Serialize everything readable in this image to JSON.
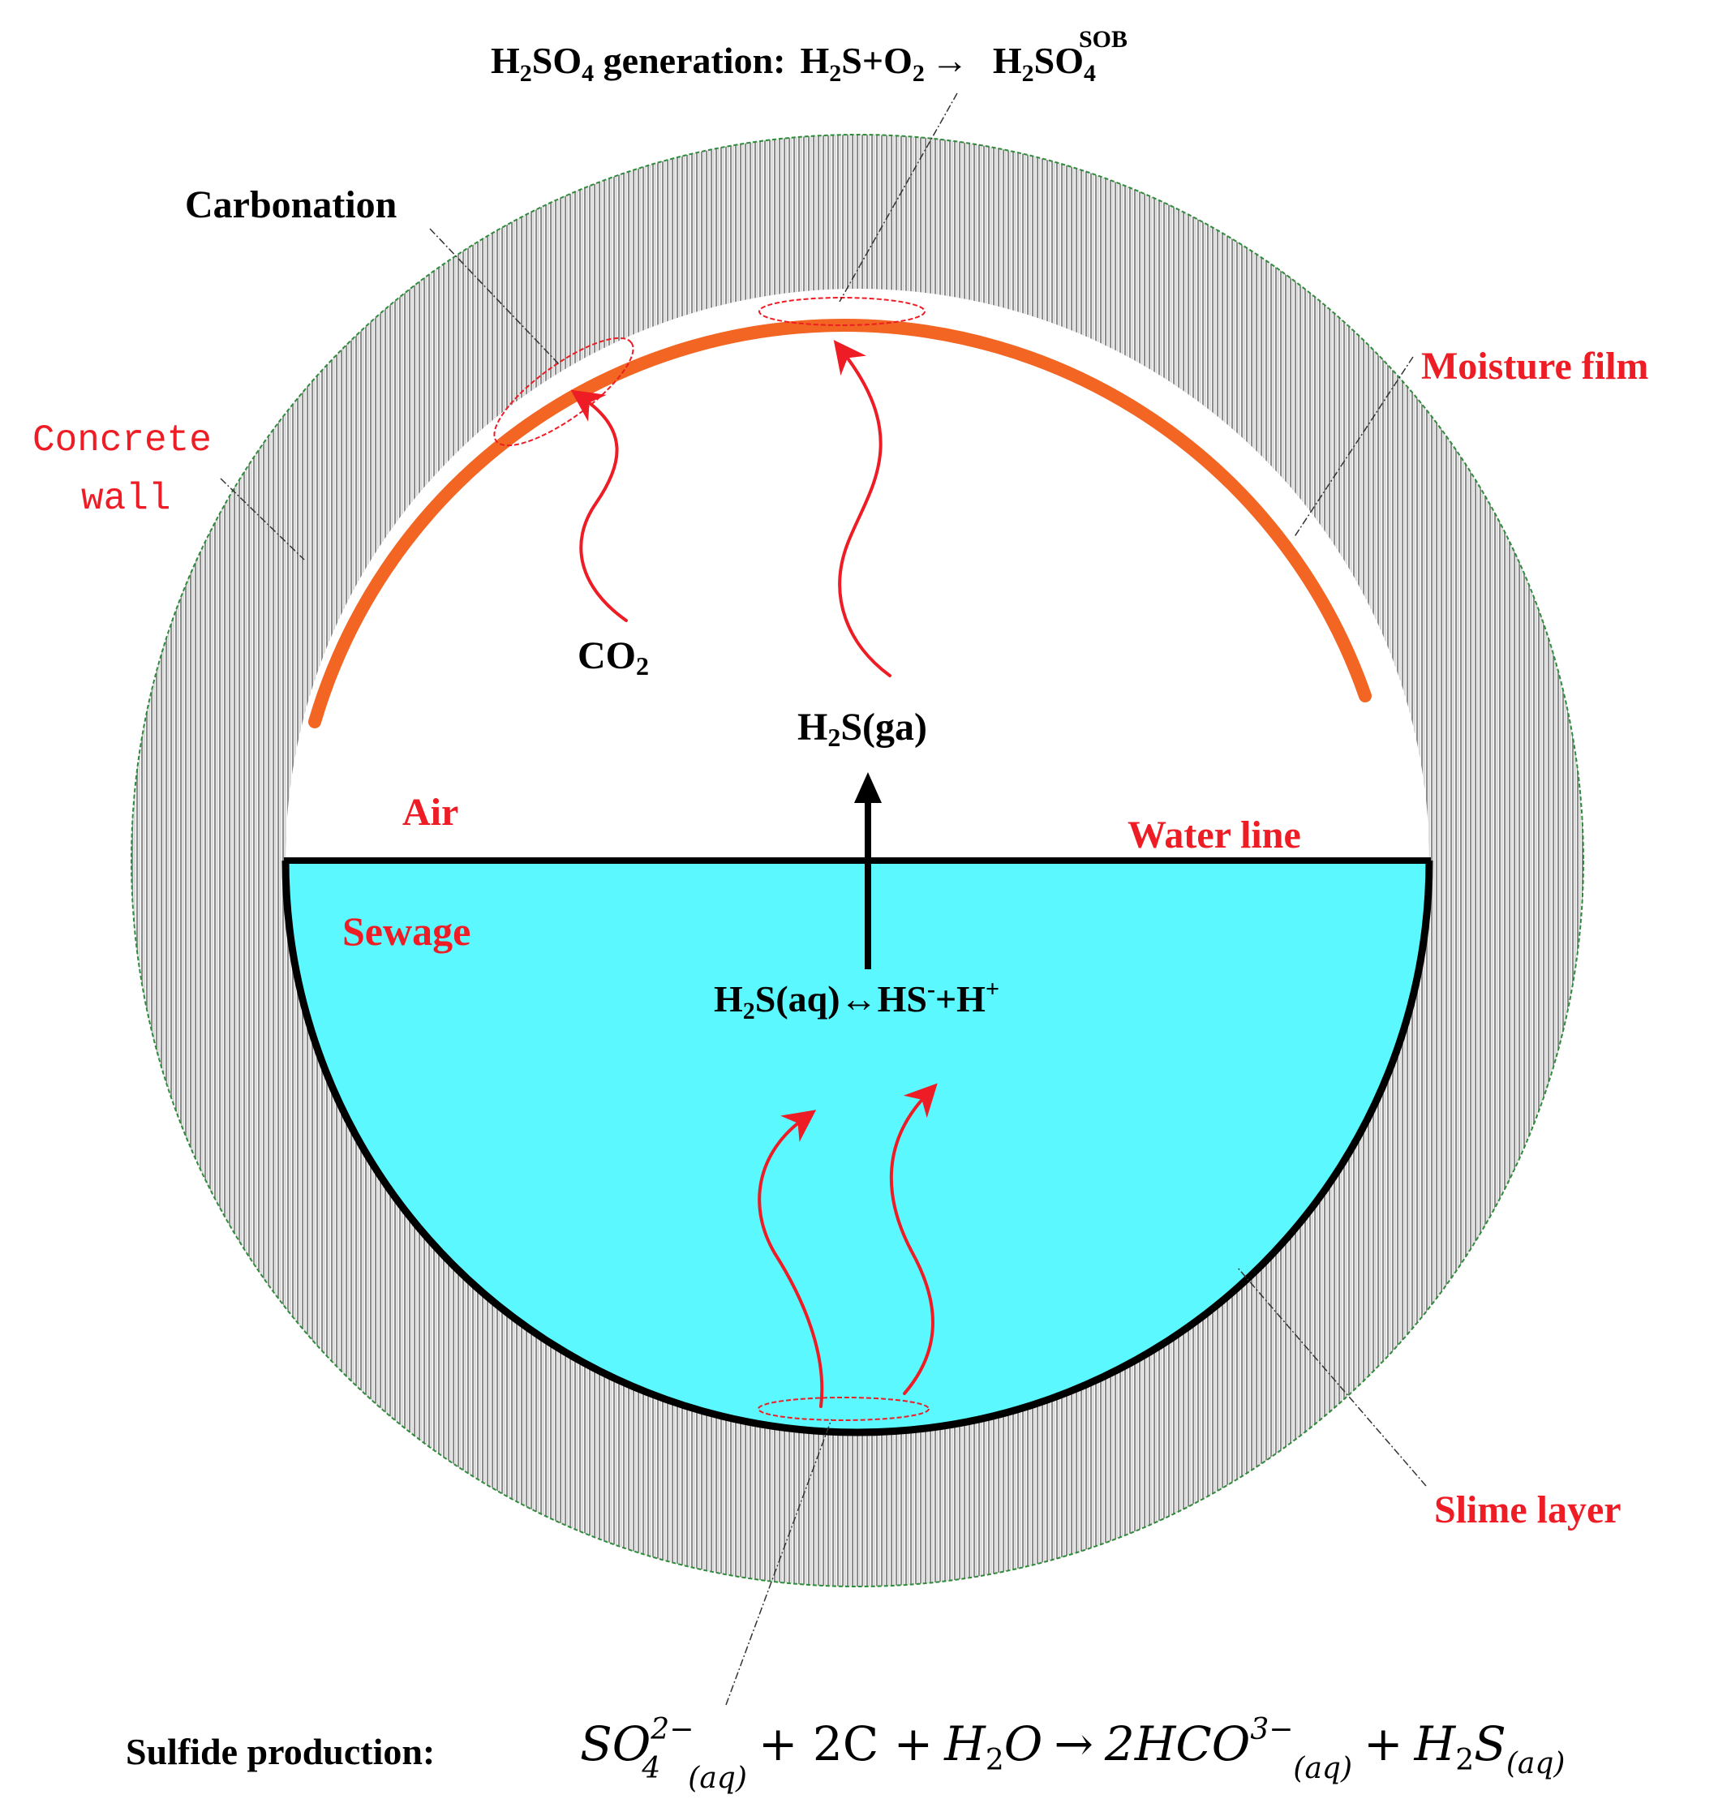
{
  "title": {
    "label": "H2SO4 generation:",
    "reactant1": "H",
    "reactant1_sub": "2",
    "reactant1_tail": "S+O",
    "reactant2_sub": "2",
    "catalyst": "SOB",
    "arrow": "→",
    "product": "H",
    "product_sub": "2",
    "product_tail": "SO",
    "product_sub2": "4",
    "label_h": "H",
    "label_sub": "2",
    "label_so": "SO",
    "label_sub2": "4",
    "label_rest": " generation:"
  },
  "labels": {
    "carbonation": "Carbonation",
    "concrete_wall_1": "Concrete",
    "concrete_wall_2": "wall",
    "moisture_film": "Moisture film",
    "co2_main": "CO",
    "co2_sub": "2",
    "h2s_gas_h": "H",
    "h2s_gas_sub": "2",
    "h2s_gas_rest": "S(ga)",
    "air": "Air",
    "water_line": "Water line",
    "sewage": "Sewage",
    "equilibrium_h": "H",
    "equilibrium_sub": "2",
    "equilibrium_mid": "S(aq)↔HS",
    "equilibrium_sup1": "-",
    "equilibrium_plus": "+H",
    "equilibrium_sup2": "+",
    "slime_layer": "Slime layer"
  },
  "bottom_equation": {
    "label": "Sulfide production:",
    "so": "SO",
    "so_sup": "2−",
    "so_sub": "4",
    "aq1": "(aq)",
    "plus1": "+ 2C +",
    "h": "H",
    "h_sub": "2",
    "o": "O",
    "arrow": "→",
    "hco": "2HCO",
    "hco_sup": "3−",
    "aq2": "(aq)",
    "plus2": "+",
    "h2": "H",
    "h2_sub": "2",
    "s": "S",
    "aq3": "(aq)"
  },
  "colors": {
    "red_label": "#ee1c24",
    "moisture_film": "#f26522",
    "sewage": "#5cf8ff",
    "wall_hatch": "#8c8c8c",
    "wall_outline": "#2e8b3a",
    "arrow_red": "#ee1c24"
  }
}
